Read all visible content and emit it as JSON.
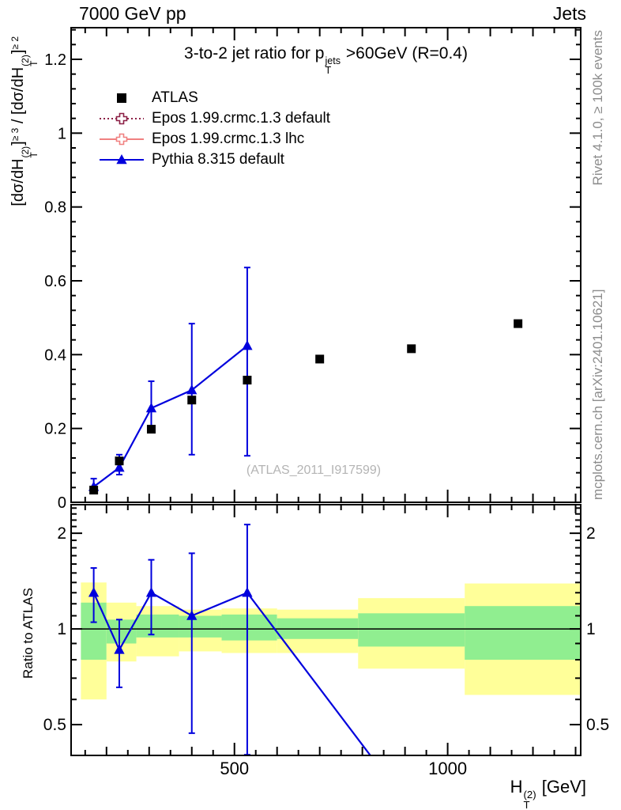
{
  "header": {
    "left": "7000 GeV pp",
    "right": "Jets"
  },
  "titles": {
    "main": [
      "3-to-2 jet ratio for p",
      {
        "st": "T",
        "sp": "jets"
      },
      " >60GeV (R=0.4)"
    ],
    "y_axis": [
      "[dσ/dH",
      {
        "st": "T",
        "sp": "(2)"
      },
      "]",
      {
        "sp": "≥ 3"
      },
      " / [dσ/dH",
      {
        "st": "T",
        "sp": "(2)"
      },
      "]",
      {
        "sp": "≥ 2"
      }
    ],
    "x_axis": [
      "H",
      {
        "st": "T",
        "sp": "(2)"
      },
      " [GeV]"
    ],
    "ratio_axis": "Ratio to ATLAS"
  },
  "watermark": "(ATLAS_2011_I917599)",
  "side_captions": {
    "top_right": "Rivet 4.1.0, ≥ 100k events",
    "bottom_right": "mcplots.cern.ch [arXiv:2401.10621]"
  },
  "legend": {
    "items": [
      {
        "label": "ATLAS",
        "marker": "filled-square",
        "line": "none",
        "color": "#000000"
      },
      {
        "label": "Epos 1.99.crmc.1.3 default",
        "marker": "open-cross",
        "line": "dotted",
        "color": "#8b1f45"
      },
      {
        "label": "Epos 1.99.crmc.1.3 lhc",
        "marker": "open-cross",
        "line": "solid",
        "color": "#f08080"
      },
      {
        "label": "Pythia 8.315 default",
        "marker": "filled-triangle",
        "line": "solid",
        "color": "#0000dd"
      }
    ]
  },
  "chart_data": {
    "type": "scatter",
    "description": "3-to-2 jet ratio vs HT(2) with MC/data ratio panel",
    "x_axis": {
      "min": 117,
      "max": 1312,
      "scale": "linear",
      "major_ticks": [
        {
          "value": 500,
          "label": "500"
        },
        {
          "value": 1000,
          "label": "1000"
        }
      ],
      "minor_step": 50,
      "medium_step": 100
    },
    "main_panel": {
      "y_min": 0,
      "y_max": 1.2857,
      "scale": "linear",
      "y_ticks": [
        {
          "value": 0,
          "label": "0"
        },
        {
          "value": 0.2,
          "label": "0.2"
        },
        {
          "value": 0.4,
          "label": "0.4"
        },
        {
          "value": 0.6,
          "label": "0.6"
        },
        {
          "value": 0.8,
          "label": "0.8"
        },
        {
          "value": 1,
          "label": "1"
        },
        {
          "value": 1.2,
          "label": "1.2"
        }
      ],
      "y_minor_step": 0.04
    },
    "ratio_panel": {
      "y_min": 0.4,
      "y_max": 2.46,
      "scale": "log",
      "y_ticks": [
        {
          "value": 0.5,
          "label": "0.5"
        },
        {
          "value": 1,
          "label": "1"
        },
        {
          "value": 2,
          "label": "2"
        }
      ],
      "reference_line": 1
    },
    "series": [
      {
        "name": "ATLAS",
        "role": "data",
        "marker": "filled-square",
        "color": "#000000",
        "x": [
          170,
          230,
          305,
          400,
          530,
          700,
          915,
          1165
        ],
        "y": [
          0.033,
          0.112,
          0.198,
          0.277,
          0.331,
          0.388,
          0.416,
          0.484
        ]
      },
      {
        "name": "Pythia 8.315 default",
        "role": "mc",
        "marker": "filled-triangle",
        "color": "#0000dd",
        "x": [
          170,
          230,
          305,
          400,
          530
        ],
        "y": [
          0.042,
          0.094,
          0.255,
          0.304,
          0.424
        ],
        "y_err_low": [
          0.03,
          0.075,
          0.189,
          0.129,
          0.126
        ],
        "y_err_high": [
          0.064,
          0.129,
          0.328,
          0.484,
          0.636
        ],
        "ratio": [
          1.3,
          0.86,
          1.3,
          1.1,
          1.3
        ],
        "ratio_err_low": [
          1.05,
          0.655,
          0.96,
          0.47,
          0.402
        ],
        "ratio_err_high": [
          1.555,
          1.07,
          1.65,
          1.73,
          2.13
        ],
        "ratio_line_extension": {
          "x": 915,
          "ratio": 0.27
        }
      }
    ],
    "uncertainty_bands": {
      "yellow_color": "#ffff99",
      "green_color": "#90ee90",
      "bin_edges": [
        140,
        200,
        270,
        370,
        470,
        600,
        790,
        1040,
        1400
      ],
      "yellow_low": [
        0.6,
        0.79,
        0.82,
        0.85,
        0.84,
        0.84,
        0.75,
        0.62
      ],
      "yellow_high": [
        1.4,
        1.21,
        1.18,
        1.15,
        1.16,
        1.15,
        1.25,
        1.39
      ],
      "green_low": [
        0.8,
        0.9,
        0.94,
        0.94,
        0.92,
        0.93,
        0.88,
        0.8
      ],
      "green_high": [
        1.21,
        1.07,
        1.11,
        1.1,
        1.11,
        1.08,
        1.12,
        1.18
      ]
    }
  }
}
